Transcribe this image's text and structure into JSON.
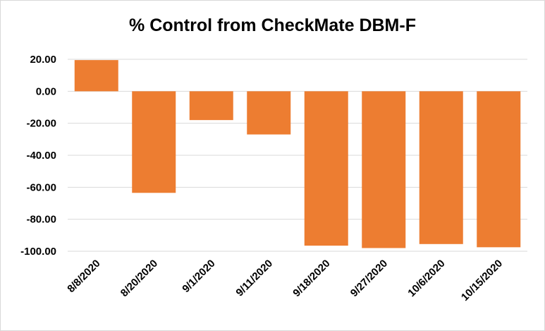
{
  "chart_data": {
    "type": "bar",
    "title": "% Control from CheckMate DBM-F",
    "xlabel": "",
    "ylabel": "",
    "categories": [
      "8/8/2020",
      "8/20/2020",
      "9/1/2020",
      "9/11/2020",
      "9/18/2020",
      "9/27/2020",
      "10/6/2020",
      "10/15/2020"
    ],
    "values": [
      19.5,
      -63.5,
      -18.0,
      -27.0,
      -96.5,
      -98.0,
      -95.5,
      -97.5
    ],
    "ylim": [
      -100,
      20
    ],
    "yticks": [
      "20.00",
      "0.00",
      "-20.00",
      "-40.00",
      "-60.00",
      "-80.00",
      "-100.00"
    ],
    "ytick_values": [
      20,
      0,
      -20,
      -40,
      -60,
      -80,
      -100
    ],
    "grid": true,
    "legend": "none",
    "colors": {
      "bar": "#ED7D31",
      "grid": "#D9D9D9",
      "text": "#000000"
    }
  }
}
